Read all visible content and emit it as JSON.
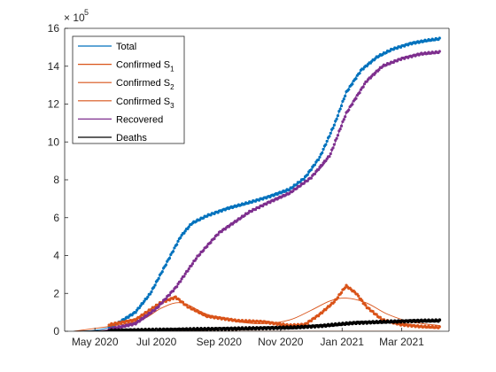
{
  "chart_data": {
    "type": "line",
    "title": "",
    "xlabel": "",
    "ylabel": "",
    "y_exponent": "5",
    "y_exponent_prefix": "× 10",
    "xlim": [
      "2020-04-01",
      "2021-04-17"
    ],
    "ylim": [
      0,
      16
    ],
    "y_scale_note": "values in units of 10^5",
    "x_tick_labels": [
      "May 2020",
      "Jul 2020",
      "Sep 2020",
      "Nov 2020",
      "Jan 2021",
      "Mar 2021"
    ],
    "y_tick_labels": [
      "0",
      "2",
      "4",
      "6",
      "8",
      "10",
      "12",
      "14",
      "16"
    ],
    "grid": false,
    "legend_position": "top-left",
    "series": [
      {
        "name": "Total",
        "legend_sub": "",
        "color": "#0072BD",
        "style": "dots+line",
        "x": [
          "2020-04-10",
          "2020-05-01",
          "2020-05-20",
          "2020-06-10",
          "2020-06-25",
          "2020-07-10",
          "2020-07-25",
          "2020-08-05",
          "2020-08-20",
          "2020-09-10",
          "2020-10-01",
          "2020-10-20",
          "2020-11-10",
          "2020-11-25",
          "2020-12-10",
          "2020-12-25",
          "2021-01-05",
          "2021-01-20",
          "2021-02-05",
          "2021-02-20",
          "2021-03-10",
          "2021-03-25",
          "2021-04-08"
        ],
        "values": [
          0.0,
          0.05,
          0.3,
          1.0,
          2.0,
          3.5,
          5.0,
          5.7,
          6.1,
          6.5,
          6.8,
          7.1,
          7.5,
          8.1,
          9.2,
          11.0,
          12.6,
          13.8,
          14.5,
          14.9,
          15.2,
          15.35,
          15.45
        ]
      },
      {
        "name": "Confirmed S",
        "legend_sub": "1",
        "color": "#D95319",
        "style": "line",
        "x": [
          "2020-04-10",
          "2020-06-01",
          "2020-07-01",
          "2020-07-20",
          "2020-08-10",
          "2020-09-10",
          "2020-10-20",
          "2020-12-01",
          "2021-01-01",
          "2021-02-01",
          "2021-04-08"
        ],
        "values": [
          0.0,
          0.0,
          0.0,
          0.0,
          0.0,
          0.0,
          0.0,
          0.0,
          0.0,
          0.0,
          0.0
        ]
      },
      {
        "name": "Confirmed S",
        "legend_sub": "2",
        "color": "#D95319",
        "style": "line",
        "x": [
          "2020-04-10",
          "2020-06-10",
          "2020-07-05",
          "2020-07-20",
          "2020-08-01",
          "2020-08-20",
          "2020-09-20",
          "2020-10-15",
          "2020-11-10",
          "2020-12-01",
          "2020-12-20",
          "2021-01-05",
          "2021-01-25",
          "2021-02-15",
          "2021-03-10",
          "2021-04-08"
        ],
        "values": [
          0.0,
          0.5,
          1.2,
          1.5,
          1.4,
          0.9,
          0.5,
          0.4,
          0.6,
          1.1,
          1.6,
          1.75,
          1.5,
          0.9,
          0.5,
          0.3
        ]
      },
      {
        "name": "Confirmed S",
        "legend_sub": "3",
        "color": "#D95319",
        "style": "dots",
        "x": [
          "2020-04-10",
          "2020-06-10",
          "2020-07-05",
          "2020-07-20",
          "2020-08-01",
          "2020-08-20",
          "2020-09-20",
          "2020-10-15",
          "2020-11-10",
          "2020-11-25",
          "2020-12-10",
          "2020-12-25",
          "2021-01-05",
          "2021-01-15",
          "2021-01-25",
          "2021-02-10",
          "2021-03-01",
          "2021-03-20",
          "2021-04-08"
        ],
        "values": [
          0.0,
          0.6,
          1.5,
          1.8,
          1.3,
          0.8,
          0.55,
          0.5,
          0.3,
          0.35,
          0.9,
          1.6,
          2.4,
          2.0,
          1.3,
          0.6,
          0.35,
          0.25,
          0.2
        ]
      },
      {
        "name": "Recovered",
        "legend_sub": "",
        "color": "#7E2F8E",
        "style": "dots+line",
        "x": [
          "2020-04-10",
          "2020-05-10",
          "2020-06-10",
          "2020-07-01",
          "2020-07-20",
          "2020-08-10",
          "2020-09-01",
          "2020-10-01",
          "2020-10-20",
          "2020-11-10",
          "2020-12-01",
          "2020-12-20",
          "2021-01-05",
          "2021-01-25",
          "2021-02-10",
          "2021-03-01",
          "2021-03-20",
          "2021-04-08"
        ],
        "values": [
          0.0,
          0.05,
          0.4,
          1.2,
          2.3,
          3.9,
          5.2,
          6.3,
          6.8,
          7.3,
          8.1,
          9.3,
          11.5,
          13.2,
          14.0,
          14.4,
          14.65,
          14.75
        ]
      },
      {
        "name": "Deaths",
        "legend_sub": "",
        "color": "#000000",
        "style": "dots+line",
        "x": [
          "2020-04-10",
          "2020-06-01",
          "2020-08-01",
          "2020-10-01",
          "2020-11-15",
          "2020-12-15",
          "2021-01-15",
          "2021-02-15",
          "2021-03-15",
          "2021-04-08"
        ],
        "values": [
          0.0,
          0.05,
          0.1,
          0.15,
          0.2,
          0.3,
          0.45,
          0.5,
          0.55,
          0.56
        ]
      }
    ]
  }
}
